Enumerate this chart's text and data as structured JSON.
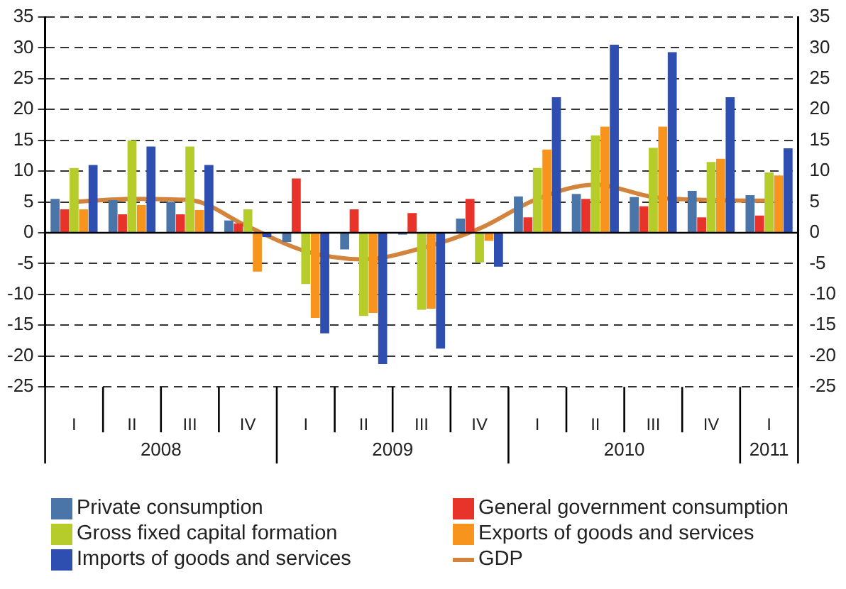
{
  "chart_data": {
    "type": "bar",
    "categories": [
      "I",
      "II",
      "III",
      "IV",
      "I",
      "II",
      "III",
      "IV",
      "I",
      "II",
      "III",
      "IV",
      "I"
    ],
    "annotations": [
      "2008",
      "2009",
      "2010",
      "2011"
    ],
    "series": [
      {
        "name": "Private consumption",
        "color": "#4a75a8",
        "values": [
          5.5,
          5.3,
          5,
          2,
          -1.5,
          -2.7,
          -0.3,
          2.3,
          5.9,
          6.3,
          5.8,
          6.8,
          6.1
        ]
      },
      {
        "name": "General government consumption",
        "color": "#e8332a",
        "values": [
          3.8,
          3,
          3,
          1.5,
          8.8,
          3.8,
          3.2,
          5.5,
          2.5,
          5.5,
          4.3,
          2.5,
          2.8
        ]
      },
      {
        "name": "Gross fixed capital formation",
        "color": "#b5cc2a",
        "values": [
          10.5,
          15,
          14,
          3.8,
          -8.3,
          -13.5,
          -12.5,
          -4.8,
          10.5,
          15.8,
          13.8,
          11.5,
          9.8
        ]
      },
      {
        "name": "Exports of goods and services",
        "color": "#f7941d",
        "values": [
          3.8,
          4.5,
          3.7,
          -6.3,
          -13.8,
          -13,
          -12.3,
          -1.3,
          13.5,
          17.2,
          17.2,
          12,
          9.3
        ]
      },
      {
        "name": "Imports of goods and services",
        "color": "#2e4fb0",
        "values": [
          11,
          14,
          11,
          -0.7,
          -16.3,
          -21.3,
          -18.8,
          -5.5,
          22,
          30.5,
          29.3,
          22,
          13.7
        ]
      },
      {
        "name": "GDP",
        "type": "line",
        "color": "#d2843c",
        "values": [
          5,
          5.5,
          5.3,
          1,
          -3,
          -4.3,
          -2.5,
          0.7,
          5.5,
          7.8,
          5.8,
          5.3,
          5.2
        ]
      }
    ],
    "ylim": [
      -25,
      35
    ],
    "yticks": [
      -25,
      -20,
      -15,
      -10,
      -5,
      0,
      5,
      10,
      15,
      20,
      25,
      30,
      35
    ],
    "y2lim": [
      -25,
      35
    ],
    "y2ticks": [
      -25,
      -20,
      -15,
      -10,
      -5,
      0,
      5,
      10,
      15,
      20,
      25,
      30,
      35
    ],
    "grid": "y",
    "legend": "bottom",
    "marker": "none",
    "line_style": "solid"
  }
}
